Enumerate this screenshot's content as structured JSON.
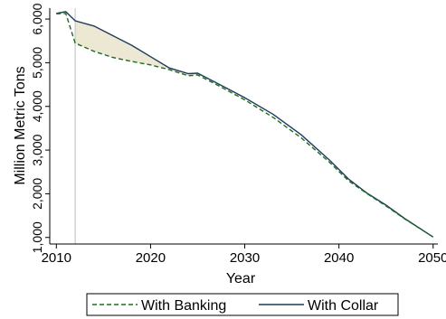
{
  "chart_data": {
    "type": "line",
    "title": "",
    "xlabel": "Year",
    "ylabel": "Million Metric Tons",
    "xlim": [
      2009.3,
      2050.5
    ],
    "ylim": [
      850,
      6250
    ],
    "xticks": [
      2010,
      2020,
      2030,
      2040,
      2050
    ],
    "xtick_labels": [
      "2010",
      "2020",
      "2030",
      "2040",
      "2050"
    ],
    "yticks": [
      1000,
      2000,
      3000,
      4000,
      5000,
      6000
    ],
    "ytick_labels": [
      "1,000",
      "2,000",
      "3,000",
      "4,000",
      "5,000",
      "6,000"
    ],
    "vline_x": 2012,
    "legend_position": "bottom",
    "shaded_region": "between series, 2012–2025",
    "colors": {
      "banking": "#1f6b1f",
      "collar": "#1c3a5c",
      "fill": "#ede8d4",
      "vline": "#c8c8c8"
    },
    "series": [
      {
        "name": "With Banking",
        "style": "dashed",
        "x": [
          2010,
          2011,
          2012,
          2014,
          2016,
          2018,
          2020,
          2022,
          2024,
          2025,
          2027,
          2030,
          2033,
          2036,
          2039,
          2041,
          2043,
          2045,
          2047,
          2050
        ],
        "y": [
          6120,
          6130,
          5450,
          5260,
          5120,
          5030,
          4950,
          4840,
          4700,
          4720,
          4500,
          4150,
          3750,
          3280,
          2720,
          2300,
          2000,
          1720,
          1420,
          1010
        ]
      },
      {
        "name": "With Collar",
        "style": "solid",
        "x": [
          2010,
          2011,
          2012,
          2014,
          2016,
          2018,
          2020,
          2022,
          2024,
          2025,
          2027,
          2030,
          2033,
          2036,
          2039,
          2041,
          2043,
          2045,
          2047,
          2050
        ],
        "y": [
          6130,
          6170,
          5960,
          5840,
          5620,
          5400,
          5140,
          4880,
          4750,
          4760,
          4540,
          4200,
          3820,
          3350,
          2770,
          2340,
          2010,
          1740,
          1430,
          1010
        ]
      }
    ]
  }
}
